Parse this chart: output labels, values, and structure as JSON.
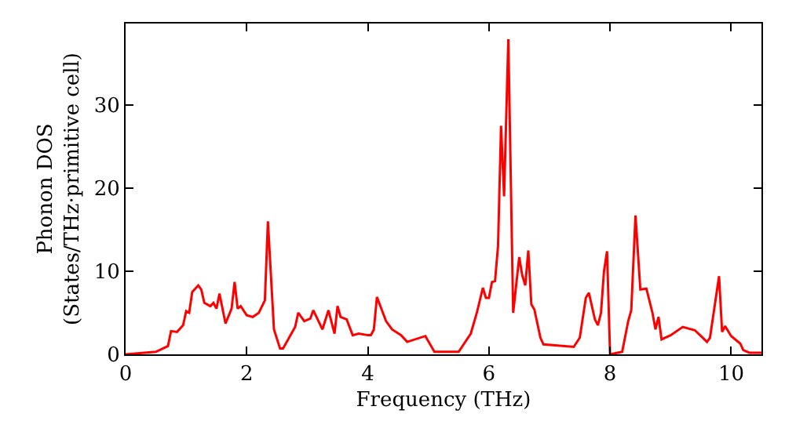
{
  "chart_data": {
    "type": "line",
    "xlabel": "Frequency (THz)",
    "ylabel": "Phonon DOS\n(States/THz·primitive cell)",
    "x": [
      0,
      0.5,
      0.7,
      0.75,
      0.85,
      0.95,
      1.0,
      1.05,
      1.1,
      1.2,
      1.25,
      1.3,
      1.4,
      1.45,
      1.5,
      1.55,
      1.65,
      1.75,
      1.8,
      1.85,
      1.9,
      2.0,
      2.1,
      2.2,
      2.3,
      2.35,
      2.45,
      2.55,
      2.6,
      2.8,
      2.85,
      2.95,
      3.05,
      3.1,
      3.25,
      3.35,
      3.45,
      3.5,
      3.55,
      3.65,
      3.75,
      3.85,
      4.0,
      4.05,
      4.1,
      4.15,
      4.3,
      4.4,
      4.55,
      4.65,
      4.95,
      5.1,
      5.5,
      5.7,
      5.8,
      5.9,
      5.95,
      6.0,
      6.05,
      6.1,
      6.15,
      6.2,
      6.25,
      6.32,
      6.4,
      6.5,
      6.55,
      6.6,
      6.65,
      6.7,
      6.75,
      6.85,
      6.9,
      7.4,
      7.5,
      7.6,
      7.65,
      7.75,
      7.8,
      7.85,
      7.9,
      7.95,
      8.0,
      8.2,
      8.3,
      8.35,
      8.42,
      8.5,
      8.6,
      8.7,
      8.75,
      8.8,
      8.85,
      9.0,
      9.2,
      9.4,
      9.5,
      9.6,
      9.65,
      9.8,
      9.85,
      9.9,
      10.0,
      10.15,
      10.2,
      10.3,
      10.5
    ],
    "series": [
      {
        "color": "#ff0000",
        "values": [
          0,
          0.3,
          1,
          2.8,
          2.7,
          3.5,
          5.2,
          5.0,
          7.5,
          8.3,
          7.8,
          6.2,
          5.8,
          6.2,
          5.5,
          7.3,
          3.7,
          5.5,
          8.7,
          5.5,
          5.8,
          4.7,
          4.5,
          5.0,
          6.5,
          16,
          3,
          0.7,
          0.7,
          3.3,
          5,
          4,
          4.3,
          5.3,
          3,
          5.3,
          2.5,
          5.8,
          4.5,
          4.2,
          2.3,
          2.5,
          2.3,
          2.3,
          3,
          6.9,
          4,
          3,
          2.3,
          1.5,
          2.2,
          0.3,
          0.3,
          2.5,
          5,
          8,
          6.8,
          6.8,
          8.7,
          8.8,
          13,
          27.5,
          19,
          37.9,
          5,
          11.7,
          9.5,
          8.3,
          12.5,
          6,
          5.4,
          2,
          1.2,
          0.9,
          2,
          6.8,
          7.4,
          4.2,
          3.5,
          5,
          10,
          12.4,
          0,
          0.3,
          4,
          5.3,
          16.7,
          7.8,
          7.9,
          5,
          3,
          4.5,
          1.8,
          2.3,
          3.3,
          2.9,
          2.2,
          1.5,
          2,
          9.4,
          2.7,
          3.4,
          2.2,
          1.3,
          0.5,
          0.2,
          0.2
        ]
      }
    ],
    "xlim": [
      0,
      10.5
    ],
    "ylim": [
      0,
      39.8
    ],
    "xticks": [
      0,
      2,
      4,
      6,
      8,
      10
    ],
    "yticks": [
      0,
      10,
      20,
      30
    ],
    "marker": "none",
    "line_style": "solid"
  }
}
